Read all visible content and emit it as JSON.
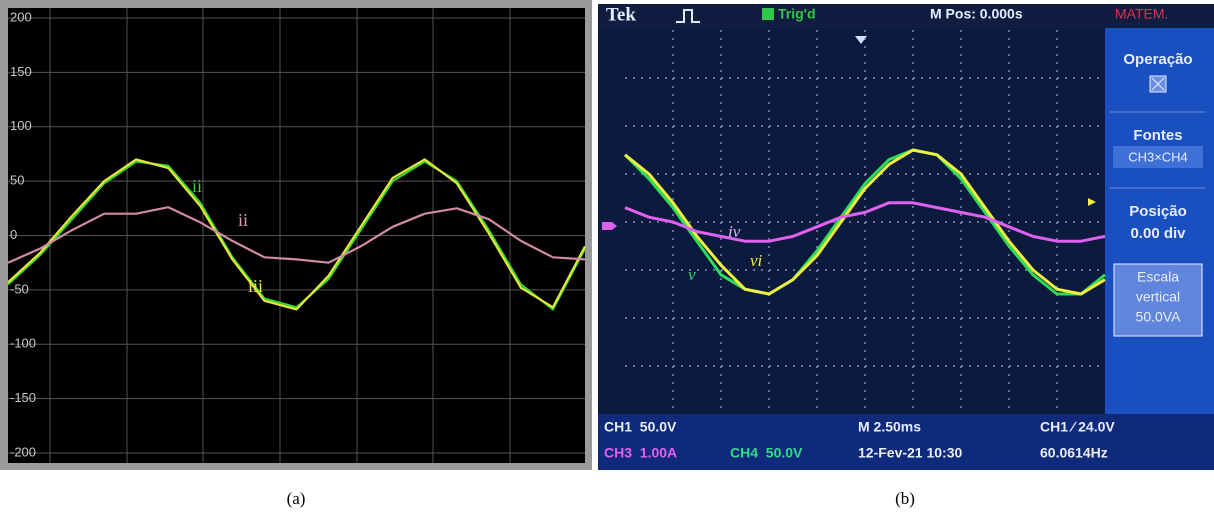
{
  "chart_data": [
    {
      "type": "line",
      "caption": "(a)",
      "categories": [
        null,
        null,
        null,
        null,
        null,
        null,
        null,
        null,
        null,
        null,
        null,
        null,
        null,
        null,
        null,
        null,
        null,
        null,
        null
      ],
      "ylim": [
        -200,
        200
      ],
      "yticks": [
        -200,
        -150,
        -100,
        -50,
        0,
        50,
        100,
        150,
        200
      ],
      "grid": true,
      "series": [
        {
          "color": "#35d43a",
          "values": [
            -45,
            -18,
            15,
            48,
            68,
            64,
            30,
            -20,
            -58,
            -66,
            -40,
            5,
            50,
            68,
            50,
            5,
            -45,
            -68,
            -12
          ]
        },
        {
          "color": "#e6e63a",
          "values": [
            -43,
            -16,
            18,
            50,
            70,
            62,
            27,
            -22,
            -60,
            -68,
            -37,
            8,
            53,
            70,
            48,
            2,
            -48,
            -66,
            -10
          ]
        },
        {
          "color": "#d08aa8",
          "values": [
            -25,
            -12,
            5,
            20,
            20,
            26,
            12,
            -5,
            -20,
            -22,
            -25,
            -10,
            8,
            20,
            25,
            15,
            -5,
            -20,
            -22
          ]
        }
      ],
      "annotations": [
        {
          "text": "ii",
          "color": "#35d43a"
        },
        {
          "text": "ii",
          "color": "#e59ab8"
        },
        {
          "text": "iii",
          "color": "#e6e63a"
        }
      ]
    },
    {
      "type": "line",
      "caption": "(b)",
      "categories": [
        null,
        null,
        null,
        null,
        null,
        null,
        null,
        null,
        null,
        null,
        null,
        null,
        null,
        null,
        null,
        null,
        null,
        null,
        null,
        null,
        null
      ],
      "ylim": [
        -4,
        4
      ],
      "series": [
        {
          "color": "#2fdc5a",
          "values": [
            1.4,
            0.9,
            0.3,
            -0.4,
            -1.1,
            -1.4,
            -1.5,
            -1.2,
            -0.6,
            0.1,
            0.8,
            1.3,
            1.5,
            1.4,
            0.9,
            0.2,
            -0.5,
            -1.1,
            -1.5,
            -1.5,
            -1.1
          ]
        },
        {
          "color": "#f0f040",
          "values": [
            1.4,
            1.0,
            0.4,
            -0.3,
            -0.9,
            -1.4,
            -1.5,
            -1.2,
            -0.7,
            0.0,
            0.7,
            1.2,
            1.5,
            1.4,
            1.0,
            0.3,
            -0.4,
            -1.0,
            -1.4,
            -1.5,
            -1.2
          ]
        },
        {
          "color": "#e060f0",
          "values": [
            0.3,
            0.1,
            0.0,
            -0.2,
            -0.3,
            -0.4,
            -0.4,
            -0.3,
            -0.1,
            0.1,
            0.2,
            0.4,
            0.4,
            0.3,
            0.2,
            0.1,
            -0.1,
            -0.3,
            -0.4,
            -0.4,
            -0.3
          ]
        }
      ],
      "annotations": [
        {
          "text": "iv",
          "color": "#e0b0f0"
        },
        {
          "text": "vi",
          "color": "#f0f040"
        },
        {
          "text": "v",
          "color": "#2fdc5a"
        }
      ],
      "header": {
        "brand": "Tek",
        "trigger": "Trig'd",
        "position": "M Pos: 0.000s",
        "menu": "MATEM."
      },
      "menu": {
        "operation": "Operação",
        "sources": "Fontes",
        "sources_value": "CH3×CH4",
        "position": "Posição",
        "position_value": "0.00 div",
        "scale": [
          "Escala",
          "vertical",
          "50.0VA"
        ]
      },
      "footer": {
        "ch1": "CH1  50.0V",
        "timebase": "M 2.50ms",
        "trigger": "CH1 ∕ 24.0V",
        "ch3": "CH3  1.00A",
        "ch4": "CH4  50.0V",
        "date": "12-Fev-21 10:30",
        "freq": "60.0614Hz"
      }
    }
  ]
}
